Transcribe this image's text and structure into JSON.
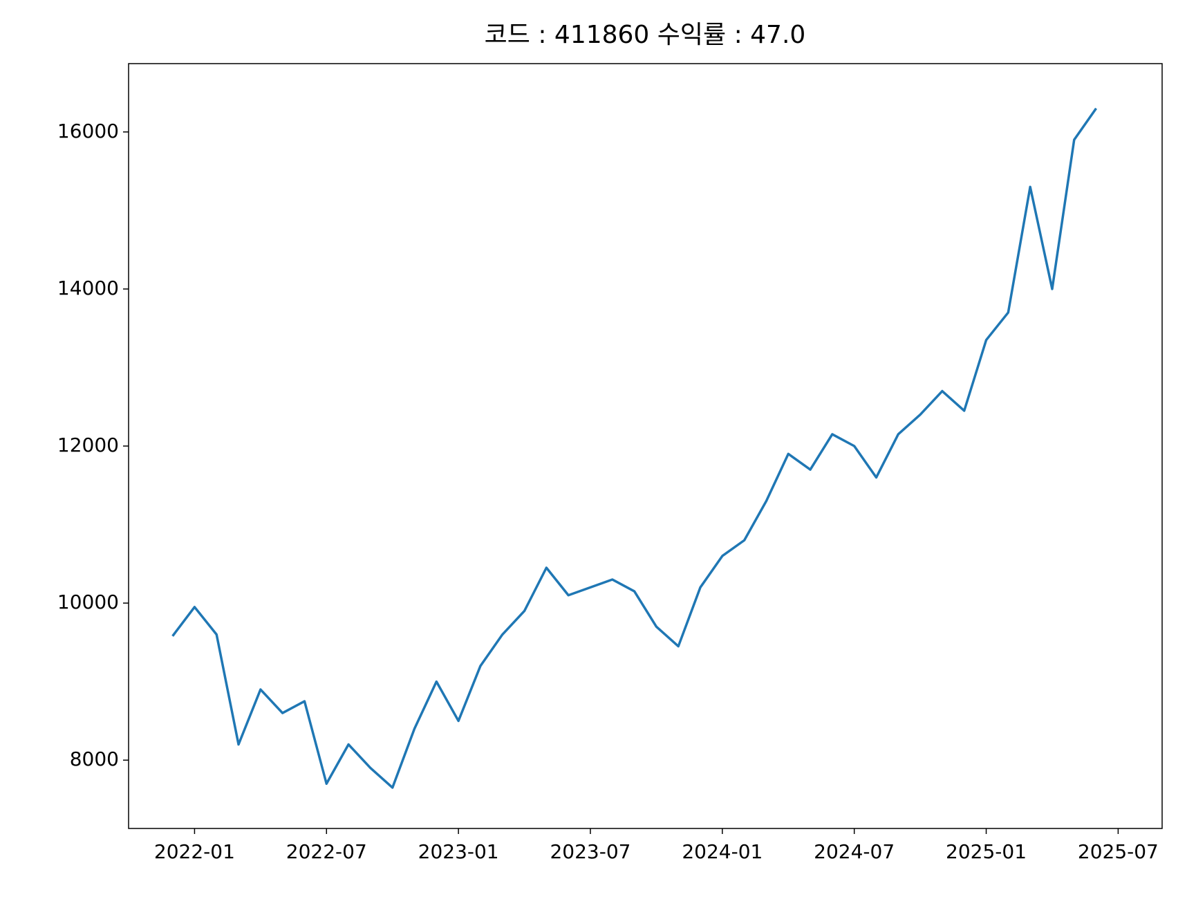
{
  "chart_data": {
    "type": "line",
    "title": "코드 : 411860 수익률 : 47.0",
    "x": [
      "2021-12",
      "2022-01",
      "2022-02",
      "2022-03",
      "2022-04",
      "2022-05",
      "2022-06",
      "2022-07",
      "2022-08",
      "2022-09",
      "2022-10",
      "2022-11",
      "2022-12",
      "2023-01",
      "2023-02",
      "2023-03",
      "2023-04",
      "2023-05",
      "2023-06",
      "2023-07",
      "2023-08",
      "2023-09",
      "2023-10",
      "2023-11",
      "2023-12",
      "2024-01",
      "2024-02",
      "2024-03",
      "2024-04",
      "2024-05",
      "2024-06",
      "2024-07",
      "2024-08",
      "2024-09",
      "2024-10",
      "2024-11",
      "2024-12",
      "2025-01",
      "2025-02",
      "2025-03",
      "2025-04",
      "2025-05",
      "2025-06"
    ],
    "series": [
      {
        "name": "411860",
        "color": "#1f77b4",
        "values": [
          9580,
          9950,
          9600,
          8200,
          8900,
          8600,
          8750,
          7700,
          8200,
          7900,
          7650,
          8400,
          9000,
          8500,
          9200,
          9600,
          9900,
          10450,
          10100,
          10200,
          10300,
          10150,
          9700,
          9450,
          10200,
          10600,
          10800,
          11300,
          11900,
          11700,
          12150,
          12000,
          11600,
          12150,
          12400,
          12700,
          12450,
          13350,
          13700,
          15300,
          14000,
          15900,
          16300
        ]
      }
    ],
    "xlim": [
      "2021-10",
      "2025-09"
    ],
    "xticks": [
      "2022-01",
      "2022-07",
      "2023-01",
      "2023-07",
      "2024-01",
      "2024-07",
      "2025-01",
      "2025-07"
    ],
    "ylim": [
      7130,
      16870
    ],
    "yticks": [
      8000,
      10000,
      12000,
      14000,
      16000
    ],
    "grid": false
  }
}
